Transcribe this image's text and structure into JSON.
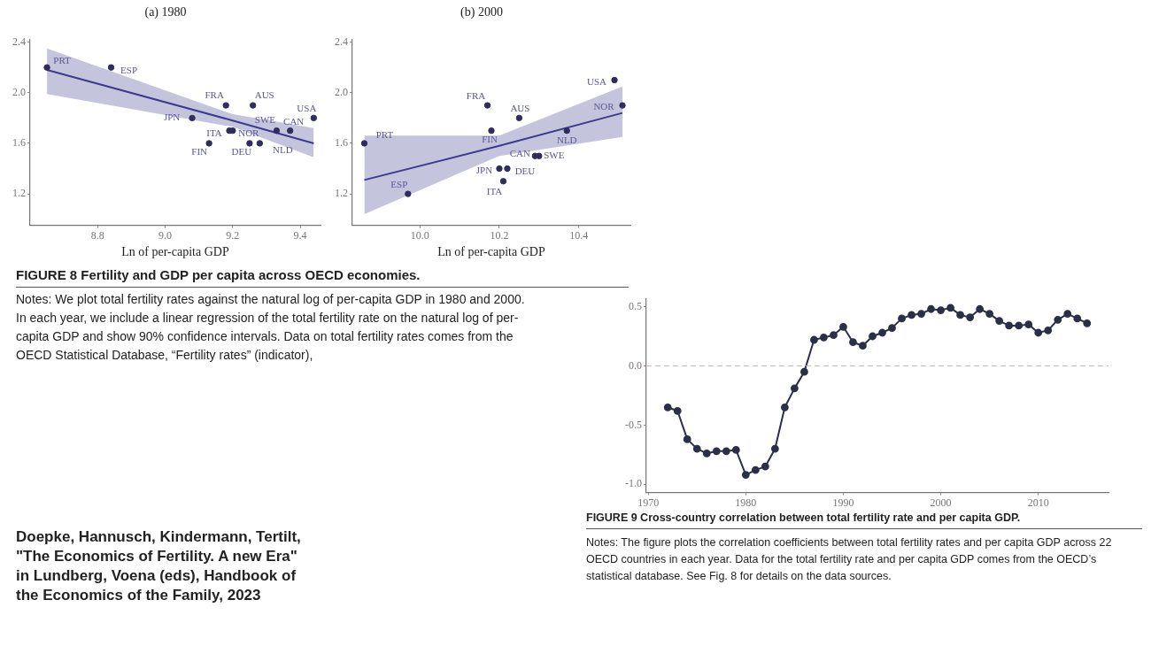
{
  "chart_data": [
    {
      "type": "scatter",
      "title": "(a) 1980",
      "xlabel": "Ln of per-capita GDP",
      "xlim": [
        8.6,
        9.46
      ],
      "ylim": [
        0.95,
        2.42
      ],
      "xticks": [
        8.8,
        {
          "value": 9,
          "label": "9.0"
        },
        9.2,
        9.4
      ],
      "yticks": [
        1.2,
        1.6,
        {
          "value": 2,
          "label": "2.0"
        },
        2.4
      ],
      "marker": "circle",
      "series": [
        {
          "color": "#2f2d5e",
          "x": [
            8.65,
            8.84,
            9.18,
            9.26,
            9.44,
            9.08,
            9.33,
            9.37,
            9.19,
            9.2,
            9.13,
            9.25,
            9.28
          ],
          "values": [
            2.2,
            2.2,
            1.9,
            1.9,
            1.8,
            1.8,
            1.7,
            1.7,
            1.7,
            1.7,
            1.6,
            1.6,
            1.6
          ]
        },
        {
          "type": "line",
          "marker": "none",
          "color": "#3d3b8f",
          "x": [
            8.65,
            9.2,
            9.44
          ],
          "values": [
            2.18,
            1.78,
            1.6
          ],
          "lower": [
            1.99,
            1.73,
            1.49
          ],
          "upper": [
            2.35,
            1.83,
            1.72
          ]
        }
      ],
      "annotations": [
        {
          "text": "PRT",
          "x": 8.65,
          "y": 2.2
        },
        {
          "text": "ESP",
          "x": 8.84,
          "y": 2.2
        },
        {
          "text": "FRA",
          "x": 9.18,
          "y": 1.9
        },
        {
          "text": "AUS",
          "x": 9.26,
          "y": 1.9
        },
        {
          "text": "USA",
          "x": 9.44,
          "y": 1.8
        },
        {
          "text": "JPN",
          "x": 9.08,
          "y": 1.8
        },
        {
          "text": "SWE",
          "x": 9.33,
          "y": 1.7
        },
        {
          "text": "CAN",
          "x": 9.37,
          "y": 1.7
        },
        {
          "text": "ITA",
          "x": 9.19,
          "y": 1.7
        },
        {
          "text": "NOR",
          "x": 9.2,
          "y": 1.7
        },
        {
          "text": "FIN",
          "x": 9.13,
          "y": 1.6
        },
        {
          "text": "DEU",
          "x": 9.25,
          "y": 1.6
        },
        {
          "text": "NLD",
          "x": 9.28,
          "y": 1.6
        },
        "FIGURE 8  Fertility and GDP per capita across OECD economies.",
        "Notes: We plot total fertility rates against the natural log of per-capita GDP in 1980 and 2000. In each year, we include a linear regression of the total fertility rate on the natural log of per-capita GDP and show 90% confidence intervals. Data on total fertility rates comes from the OECD Statistical Database, “Fertility rates” (indicator),",
        "Doepke, Hannusch, Kindermann, Tertilt, \"The Economics of Fertility. A new Era\" in Lundberg, Voena (eds), Handbook of the Economics of the Family, 2023"
      ]
    },
    {
      "type": "scatter",
      "title": "(b) 2000",
      "xlabel": "Ln of per-capita GDP",
      "xlim": [
        9.83,
        10.53
      ],
      "ylim": [
        0.95,
        2.42
      ],
      "xticks": [
        {
          "value": 10,
          "label": "10.0"
        },
        10.2,
        10.4
      ],
      "yticks": [
        1.2,
        1.6,
        {
          "value": 2,
          "label": "2.0"
        },
        2.4
      ],
      "marker": "circle",
      "series": [
        {
          "color": "#2f2d5e",
          "x": [
            9.86,
            9.97,
            10.17,
            10.25,
            10.18,
            10.49,
            10.51,
            10.37,
            10.29,
            10.3,
            10.2,
            10.22,
            10.21
          ],
          "values": [
            1.6,
            1.2,
            1.9,
            1.8,
            1.7,
            2.1,
            1.9,
            1.7,
            1.5,
            1.5,
            1.4,
            1.4,
            1.3
          ]
        },
        {
          "type": "line",
          "marker": "none",
          "color": "#3d3b8f",
          "x": [
            9.86,
            10.2,
            10.51
          ],
          "values": [
            1.31,
            1.58,
            1.84
          ],
          "lower": [
            1.04,
            1.5,
            1.65
          ],
          "upper": [
            1.66,
            1.66,
            2.05
          ]
        }
      ],
      "annotations": [
        {
          "text": "PRT",
          "x": 9.86,
          "y": 1.6
        },
        {
          "text": "ESP",
          "x": 9.97,
          "y": 1.2
        },
        {
          "text": "FRA",
          "x": 10.17,
          "y": 1.9
        },
        {
          "text": "AUS",
          "x": 10.25,
          "y": 1.8
        },
        {
          "text": "FIN",
          "x": 10.18,
          "y": 1.7
        },
        {
          "text": "USA",
          "x": 10.49,
          "y": 2.1
        },
        {
          "text": "NOR",
          "x": 10.51,
          "y": 1.9
        },
        {
          "text": "NLD",
          "x": 10.37,
          "y": 1.7
        },
        {
          "text": "CAN",
          "x": 10.29,
          "y": 1.5
        },
        {
          "text": "SWE",
          "x": 10.3,
          "y": 1.5
        },
        {
          "text": "JPN",
          "x": 10.2,
          "y": 1.4
        },
        {
          "text": "DEU",
          "x": 10.22,
          "y": 1.4
        },
        {
          "text": "ITA",
          "x": 10.21,
          "y": 1.3
        }
      ]
    },
    {
      "type": "line",
      "xlim": [
        1969.8,
        2017.2
      ],
      "ylim": [
        -1.07,
        0.57
      ],
      "xticks": [
        1970,
        1980,
        1990,
        2000,
        2010
      ],
      "yticks": [
        {
          "value": -1,
          "label": "-1.0"
        },
        -0.5,
        {
          "value": 0,
          "label": "0.0"
        },
        0.5
      ],
      "marker": "circle",
      "x": [
        1972,
        1973,
        1974,
        1975,
        1976,
        1977,
        1978,
        1979,
        1980,
        1981,
        1982,
        1983,
        1984,
        1985,
        1986,
        1987,
        1988,
        1989,
        1990,
        1991,
        1992,
        1993,
        1994,
        1995,
        1996,
        1997,
        1998,
        1999,
        2000,
        2001,
        2002,
        2003,
        2004,
        2005,
        2006,
        2007,
        2008,
        2009,
        2010,
        2011,
        2012,
        2013,
        2014,
        2015
      ],
      "series": [
        {
          "color": "#2b2f48",
          "values": [
            -0.35,
            -0.38,
            -0.62,
            -0.7,
            -0.74,
            -0.72,
            -0.72,
            -0.71,
            -0.92,
            -0.88,
            -0.85,
            -0.7,
            -0.35,
            -0.19,
            -0.05,
            0.22,
            0.24,
            0.26,
            0.33,
            0.2,
            0.17,
            0.25,
            0.28,
            0.32,
            0.4,
            0.43,
            0.44,
            0.48,
            0.47,
            0.49,
            0.43,
            0.41,
            0.48,
            0.44,
            0.38,
            0.34,
            0.34,
            0.35,
            0.28,
            0.3,
            0.39,
            0.44,
            0.4,
            0.36
          ]
        }
      ],
      "ref_lines": [
        {
          "axis": "y",
          "value": 0,
          "line_style": "dashed",
          "color": "#d2b4b4"
        }
      ],
      "annotations": [
        "FIGURE 9  Cross-country correlation between total fertility rate and per capita GDP.",
        "Notes: The figure plots the correlation coefficients between total fertility rates and per capita GDP across 22 OECD countries in each year. Data for the total fertility rate and per capita GDP comes from the OECD’s statistical database. See Fig. 8 for details on the data sources."
      ]
    }
  ]
}
